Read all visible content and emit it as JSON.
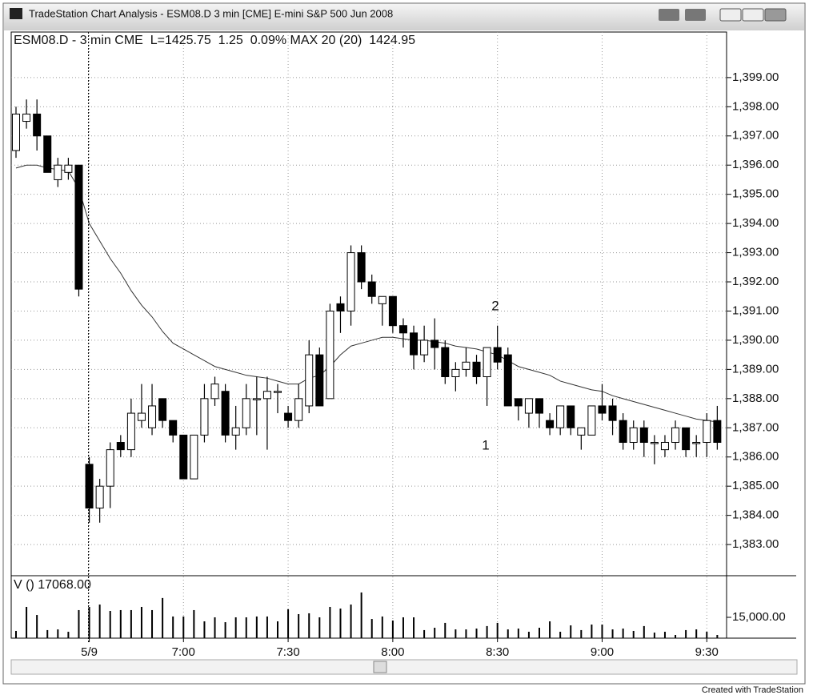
{
  "window": {
    "title": "TradeStation Chart Analysis - ESM08.D 3 min [CME] E-mini S&P 500 Jun 2008",
    "footer": "Created with TradeStation"
  },
  "chart_data": {
    "type": "candlestick",
    "title": "ESM08.D - 3 min CME  L=1425.75  1.25  0.09% MAX 20 (20)  1424.95",
    "categories": [
      null,
      null,
      null,
      null,
      null,
      null,
      null,
      "5/9",
      null,
      null,
      null,
      null,
      null,
      null,
      null,
      null,
      "7:00",
      null,
      null,
      null,
      null,
      null,
      null,
      null,
      null,
      null,
      "7:30",
      null,
      null,
      null,
      null,
      null,
      null,
      null,
      null,
      null,
      "8:00",
      null,
      null,
      null,
      null,
      null,
      null,
      null,
      null,
      null,
      "8:30",
      null,
      null,
      null,
      null,
      null,
      null,
      null,
      null,
      null,
      "9:00",
      null,
      null,
      null,
      null,
      null,
      null,
      null,
      null,
      null,
      "9:30",
      null
    ],
    "open": [
      1396.5,
      1397.5,
      1397.75,
      1397,
      1395.5,
      1395.75,
      1396,
      1385.75,
      1384.25,
      1385,
      1386.5,
      1386.25,
      1387.25,
      1387,
      1388,
      1387.25,
      1386.75,
      1385.25,
      1386.75,
      1388,
      1388.25,
      1386.75,
      1387,
      1388,
      1388,
      1388.25,
      1387.5,
      1387.25,
      1387.75,
      1389.5,
      1388,
      1391.25,
      1391,
      1393,
      1392,
      1391.25,
      1391.5,
      1390.5,
      1390.25,
      1389.5,
      1390,
      1389.75,
      1388.75,
      1389,
      1389.25,
      1388.75,
      1389.75,
      1389.5,
      1388,
      1387.5,
      1388,
      1387.25,
      1387,
      1387.75,
      1386.75,
      1386.75,
      1387.75,
      1387.75,
      1387.25,
      1386.5,
      1387,
      1386.5,
      1386.25,
      1386.5,
      1387,
      1386.5,
      1386.5,
      1387.25
    ],
    "high": [
      1398,
      1398.25,
      1398.25,
      1397,
      1396.25,
      1396.25,
      1396,
      1386,
      1385.25,
      1386.5,
      1386.75,
      1388,
      1388.5,
      1388.5,
      1388,
      1387.25,
      1386.75,
      1386.75,
      1388.5,
      1388.75,
      1388.5,
      1387.75,
      1388.5,
      1388.75,
      1388.75,
      1388.5,
      1387.75,
      1388.5,
      1390,
      1389.75,
      1391.25,
      1391.5,
      1393.25,
      1393.25,
      1392.25,
      1391.5,
      1391.5,
      1390.75,
      1390.5,
      1390.5,
      1390.75,
      1390,
      1389.25,
      1389.75,
      1389.5,
      1389.75,
      1390.5,
      1389.75,
      1388,
      1388,
      1388,
      1387.5,
      1387.75,
      1387.75,
      1387,
      1387.75,
      1388.5,
      1388,
      1387.5,
      1387.25,
      1387.25,
      1386.75,
      1386.75,
      1387.25,
      1387,
      1386.75,
      1387.5,
      1387.75
    ],
    "low": [
      1396.25,
      1397.25,
      1396.5,
      1395.75,
      1395.25,
      1395.5,
      1391.5,
      1383.75,
      1383.75,
      1384.25,
      1386,
      1386,
      1387,
      1386.75,
      1387,
      1386.5,
      1385.25,
      1385.25,
      1386.5,
      1387.75,
      1386.5,
      1386.25,
      1386.75,
      1386.75,
      1386.25,
      1387.5,
      1387,
      1387,
      1387.5,
      1387.75,
      1388,
      1390.25,
      1390.5,
      1391.75,
      1391.25,
      1390.5,
      1390.25,
      1389.75,
      1389,
      1389.25,
      1389,
      1388.5,
      1388.25,
      1388.75,
      1388.5,
      1387.75,
      1389,
      1387.75,
      1387.25,
      1387,
      1387,
      1386.75,
      1386.75,
      1386.75,
      1386.25,
      1386.75,
      1387.25,
      1386.75,
      1386.25,
      1386.25,
      1386,
      1385.75,
      1386,
      1386.25,
      1386,
      1386,
      1386,
      1386.25
    ],
    "close": [
      1397.75,
      1397.75,
      1397,
      1395.75,
      1396,
      1396,
      1391.75,
      1384.25,
      1385,
      1386.25,
      1386.25,
      1387.5,
      1387.5,
      1387.75,
      1387.25,
      1386.75,
      1385.25,
      1386.75,
      1388,
      1388.5,
      1386.75,
      1387,
      1388,
      1388,
      1388.25,
      1388.25,
      1387.25,
      1388,
      1389.5,
      1387.75,
      1391,
      1391,
      1393,
      1392,
      1391.5,
      1391.5,
      1390.5,
      1390.25,
      1389.5,
      1390,
      1389.75,
      1388.75,
      1389,
      1389.25,
      1388.75,
      1389.75,
      1389.25,
      1387.75,
      1387.75,
      1388,
      1387.5,
      1387,
      1387.75,
      1387,
      1387,
      1387.75,
      1387.5,
      1387.25,
      1386.5,
      1387,
      1386.5,
      1386.5,
      1386.5,
      1387,
      1386.25,
      1386.5,
      1387.25,
      1386.5
    ],
    "up_color": "#ffffff",
    "down_color": "#000000",
    "ma": {
      "color": "#333333",
      "values": [
        1395.9,
        1396,
        1396,
        1395.9,
        1395.85,
        1395.8,
        1395.2,
        1394,
        1393.4,
        1392.8,
        1392.3,
        1391.7,
        1391.2,
        1390.8,
        1390.3,
        1389.9,
        1389.7,
        1389.5,
        1389.3,
        1389.1,
        1389,
        1388.9,
        1388.8,
        1388.75,
        1388.7,
        1388.6,
        1388.5,
        1388.5,
        1388.7,
        1388.8,
        1389.1,
        1389.5,
        1389.8,
        1389.9,
        1390,
        1390.1,
        1390.1,
        1390.05,
        1390,
        1390,
        1389.95,
        1389.9,
        1389.8,
        1389.75,
        1389.7,
        1389.6,
        1389.5,
        1389.3,
        1389.1,
        1389,
        1388.9,
        1388.8,
        1388.6,
        1388.5,
        1388.4,
        1388.3,
        1388.25,
        1388.1,
        1388,
        1387.9,
        1387.8,
        1387.7,
        1387.6,
        1387.5,
        1387.4,
        1387.3,
        1387.25,
        1387.2
      ]
    },
    "ylim": [
      1381.96,
      1400.56
    ],
    "yticks": [
      {
        "value": 1383,
        "label": "1,383.00"
      },
      {
        "value": 1384,
        "label": "1,384.00"
      },
      {
        "value": 1385,
        "label": "1,385.00"
      },
      {
        "value": 1386,
        "label": "1,386.00"
      },
      {
        "value": 1387,
        "label": "1,387.00"
      },
      {
        "value": 1388,
        "label": "1,388.00"
      },
      {
        "value": 1389,
        "label": "1,389.00"
      },
      {
        "value": 1390,
        "label": "1,390.00"
      },
      {
        "value": 1391,
        "label": "1,391.00"
      },
      {
        "value": 1392,
        "label": "1,392.00"
      },
      {
        "value": 1393,
        "label": "1,393.00"
      },
      {
        "value": 1394,
        "label": "1,394.00"
      },
      {
        "value": 1395,
        "label": "1,395.00"
      },
      {
        "value": 1396,
        "label": "1,396.00"
      },
      {
        "value": 1397,
        "label": "1,397.00"
      },
      {
        "value": 1398,
        "label": "1,398.00"
      },
      {
        "value": 1399,
        "label": "1,399.00"
      }
    ],
    "grid": true,
    "annotations": [
      "1",
      "2"
    ],
    "volume": {
      "label": "V () 17068.00",
      "color": "#000000",
      "values": [
        5200,
        22500,
        16700,
        5800,
        6300,
        4600,
        20200,
        22500,
        24200,
        19600,
        20200,
        20200,
        22500,
        20200,
        28900,
        15600,
        15600,
        20200,
        12100,
        15000,
        11500,
        15000,
        15000,
        15600,
        15600,
        12100,
        20800,
        17300,
        17900,
        15000,
        22500,
        21300,
        24200,
        32900,
        13800,
        15600,
        12700,
        15000,
        15000,
        5800,
        7500,
        11000,
        6300,
        6300,
        6900,
        8700,
        11000,
        6300,
        6900,
        4600,
        7500,
        12100,
        4600,
        9200,
        5800,
        9800,
        9800,
        6300,
        6900,
        5200,
        8700,
        4000,
        4600,
        2300,
        5800,
        6300,
        4600,
        2300
      ],
      "ylim": [
        0,
        44400
      ],
      "yticks": [
        {
          "value": 15000,
          "label": "15,000.00"
        }
      ]
    }
  }
}
